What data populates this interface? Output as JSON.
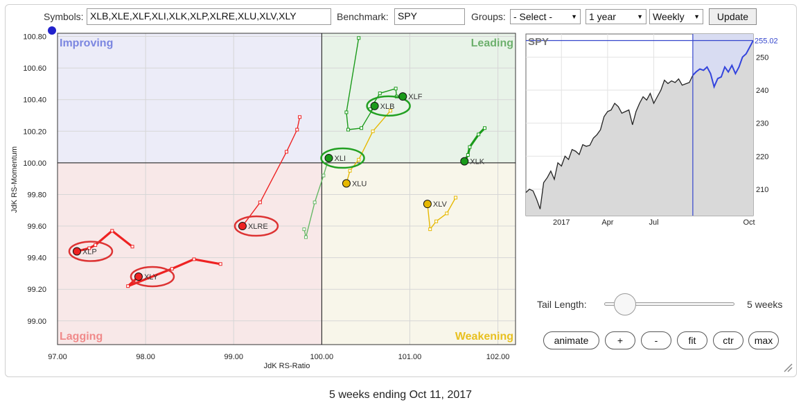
{
  "toolbar": {
    "symbols_label": "Symbols:",
    "symbols_value": "XLB,XLE,XLF,XLI,XLK,XLP,XLRE,XLU,XLV,XLY",
    "benchmark_label": "Benchmark:",
    "benchmark_value": "SPY",
    "groups_label": "Groups:",
    "groups_value": "- Select -",
    "period_value": "1 year",
    "frequency_value": "Weekly",
    "update_label": "Update"
  },
  "rrg": {
    "quadrants": {
      "improving": "Improving",
      "leading": "Leading",
      "lagging": "Lagging",
      "weakening": "Weakening"
    },
    "quadrant_colors": {
      "improving": "#7b86e0",
      "leading": "#6db06d",
      "lagging": "#f08a8a",
      "weakening": "#e8c020"
    }
  },
  "chart_data": [
    {
      "type": "scatter",
      "subtype": "relative-rotation-graph",
      "xlabel": "JdK RS-Ratio",
      "ylabel": "JdK RS-Momentum",
      "xlim": [
        97.0,
        102.2
      ],
      "ylim": [
        98.85,
        100.82
      ],
      "x_ticks": [
        "97.00",
        "98.00",
        "99.00",
        "100.00",
        "101.00",
        "102.00"
      ],
      "y_ticks": [
        "100.80",
        "100.60",
        "100.40",
        "100.20",
        "100.00",
        "99.80",
        "99.60",
        "99.40",
        "99.20",
        "99.00"
      ],
      "center": [
        100.0,
        100.0
      ],
      "grid": true,
      "series": [
        {
          "name": "XLB",
          "color": "#1a9a1a",
          "highlighted": true,
          "tail_style": "thin",
          "points": [
            [
              100.42,
              100.79
            ],
            [
              100.28,
              100.32
            ],
            [
              100.3,
              100.21
            ],
            [
              100.45,
              100.22
            ],
            [
              100.6,
              100.36
            ]
          ]
        },
        {
          "name": "XLF",
          "color": "#1a9a1a",
          "highlighted": false,
          "tail_style": "thin",
          "points": [
            [
              100.55,
              100.34
            ],
            [
              100.66,
              100.44
            ],
            [
              100.84,
              100.47
            ],
            [
              100.85,
              100.42
            ],
            [
              100.92,
              100.42
            ]
          ]
        },
        {
          "name": "XLI",
          "color": "#66b866",
          "highlighted": true,
          "tail_style": "thin",
          "points": [
            [
              99.8,
              99.58
            ],
            [
              99.82,
              99.53
            ],
            [
              99.92,
              99.75
            ],
            [
              100.02,
              99.92
            ],
            [
              100.08,
              100.03
            ]
          ]
        },
        {
          "name": "XLK",
          "color": "#1a9a1a",
          "highlighted": false,
          "tail_style": "thick",
          "points": [
            [
              101.85,
              100.22
            ],
            [
              101.78,
              100.18
            ],
            [
              101.68,
              100.1
            ],
            [
              101.66,
              100.05
            ],
            [
              101.62,
              100.01
            ]
          ]
        },
        {
          "name": "XLU",
          "color": "#e6b800",
          "highlighted": false,
          "tail_style": "thin",
          "points": [
            [
              100.78,
              100.33
            ],
            [
              100.58,
              100.2
            ],
            [
              100.42,
              100.02
            ],
            [
              100.32,
              99.95
            ],
            [
              100.28,
              99.87
            ]
          ]
        },
        {
          "name": "XLV",
          "color": "#e6b800",
          "highlighted": false,
          "tail_style": "thin",
          "points": [
            [
              101.52,
              99.78
            ],
            [
              101.42,
              99.68
            ],
            [
              101.3,
              99.63
            ],
            [
              101.23,
              99.58
            ],
            [
              101.2,
              99.74
            ]
          ]
        },
        {
          "name": "XLRE",
          "color": "#ee2222",
          "highlighted": true,
          "tail_style": "thin",
          "points": [
            [
              99.75,
              100.29
            ],
            [
              99.72,
              100.21
            ],
            [
              99.6,
              100.07
            ],
            [
              99.3,
              99.75
            ],
            [
              99.1,
              99.6
            ]
          ]
        },
        {
          "name": "XLP",
          "color": "#ee2222",
          "highlighted": true,
          "tail_style": "thick",
          "points": [
            [
              97.85,
              99.47
            ],
            [
              97.62,
              99.57
            ],
            [
              97.43,
              99.48
            ],
            [
              97.36,
              99.46
            ],
            [
              97.22,
              99.44
            ]
          ]
        },
        {
          "name": "XLY",
          "color": "#ee2222",
          "highlighted": true,
          "tail_style": "thick",
          "points": [
            [
              98.85,
              99.36
            ],
            [
              98.55,
              99.39
            ],
            [
              98.3,
              99.33
            ],
            [
              97.8,
              99.22
            ],
            [
              97.92,
              99.28
            ]
          ]
        }
      ]
    },
    {
      "type": "area",
      "title": "SPY",
      "last_value": "255.02",
      "x_tick_labels": [
        "2017",
        "Apr",
        "Jul",
        "Oct"
      ],
      "y_ticks": [
        "250",
        "240",
        "230",
        "220",
        "210"
      ],
      "ylim": [
        202,
        257
      ],
      "tail_window_start_index": 47,
      "values": [
        209,
        210,
        209.5,
        207,
        204,
        212,
        213.5,
        215.5,
        213,
        218,
        217,
        220,
        219,
        222,
        221.5,
        220.5,
        223.5,
        223,
        223.3,
        225.5,
        226.5,
        228,
        232,
        233.5,
        234,
        236,
        235,
        233,
        233.5,
        234,
        229.5,
        233.5,
        236,
        238,
        237,
        239,
        236,
        238,
        240,
        243,
        242,
        242.8,
        242.3,
        243.4,
        241.5,
        241.9,
        242.3,
        244.5,
        245.6,
        246.4,
        246,
        247,
        245,
        241,
        243.5,
        244,
        247,
        245.5,
        247.5,
        245,
        247,
        250,
        251,
        253,
        255
      ]
    }
  ],
  "tail": {
    "label": "Tail Length:",
    "value_text": "5 weeks",
    "value": 5
  },
  "controls": {
    "animate": "animate",
    "plus": "+",
    "minus": "-",
    "fit": "fit",
    "ctr": "ctr",
    "max": "max"
  },
  "footer": {
    "caption": "5 weeks ending Oct 11, 2017"
  }
}
